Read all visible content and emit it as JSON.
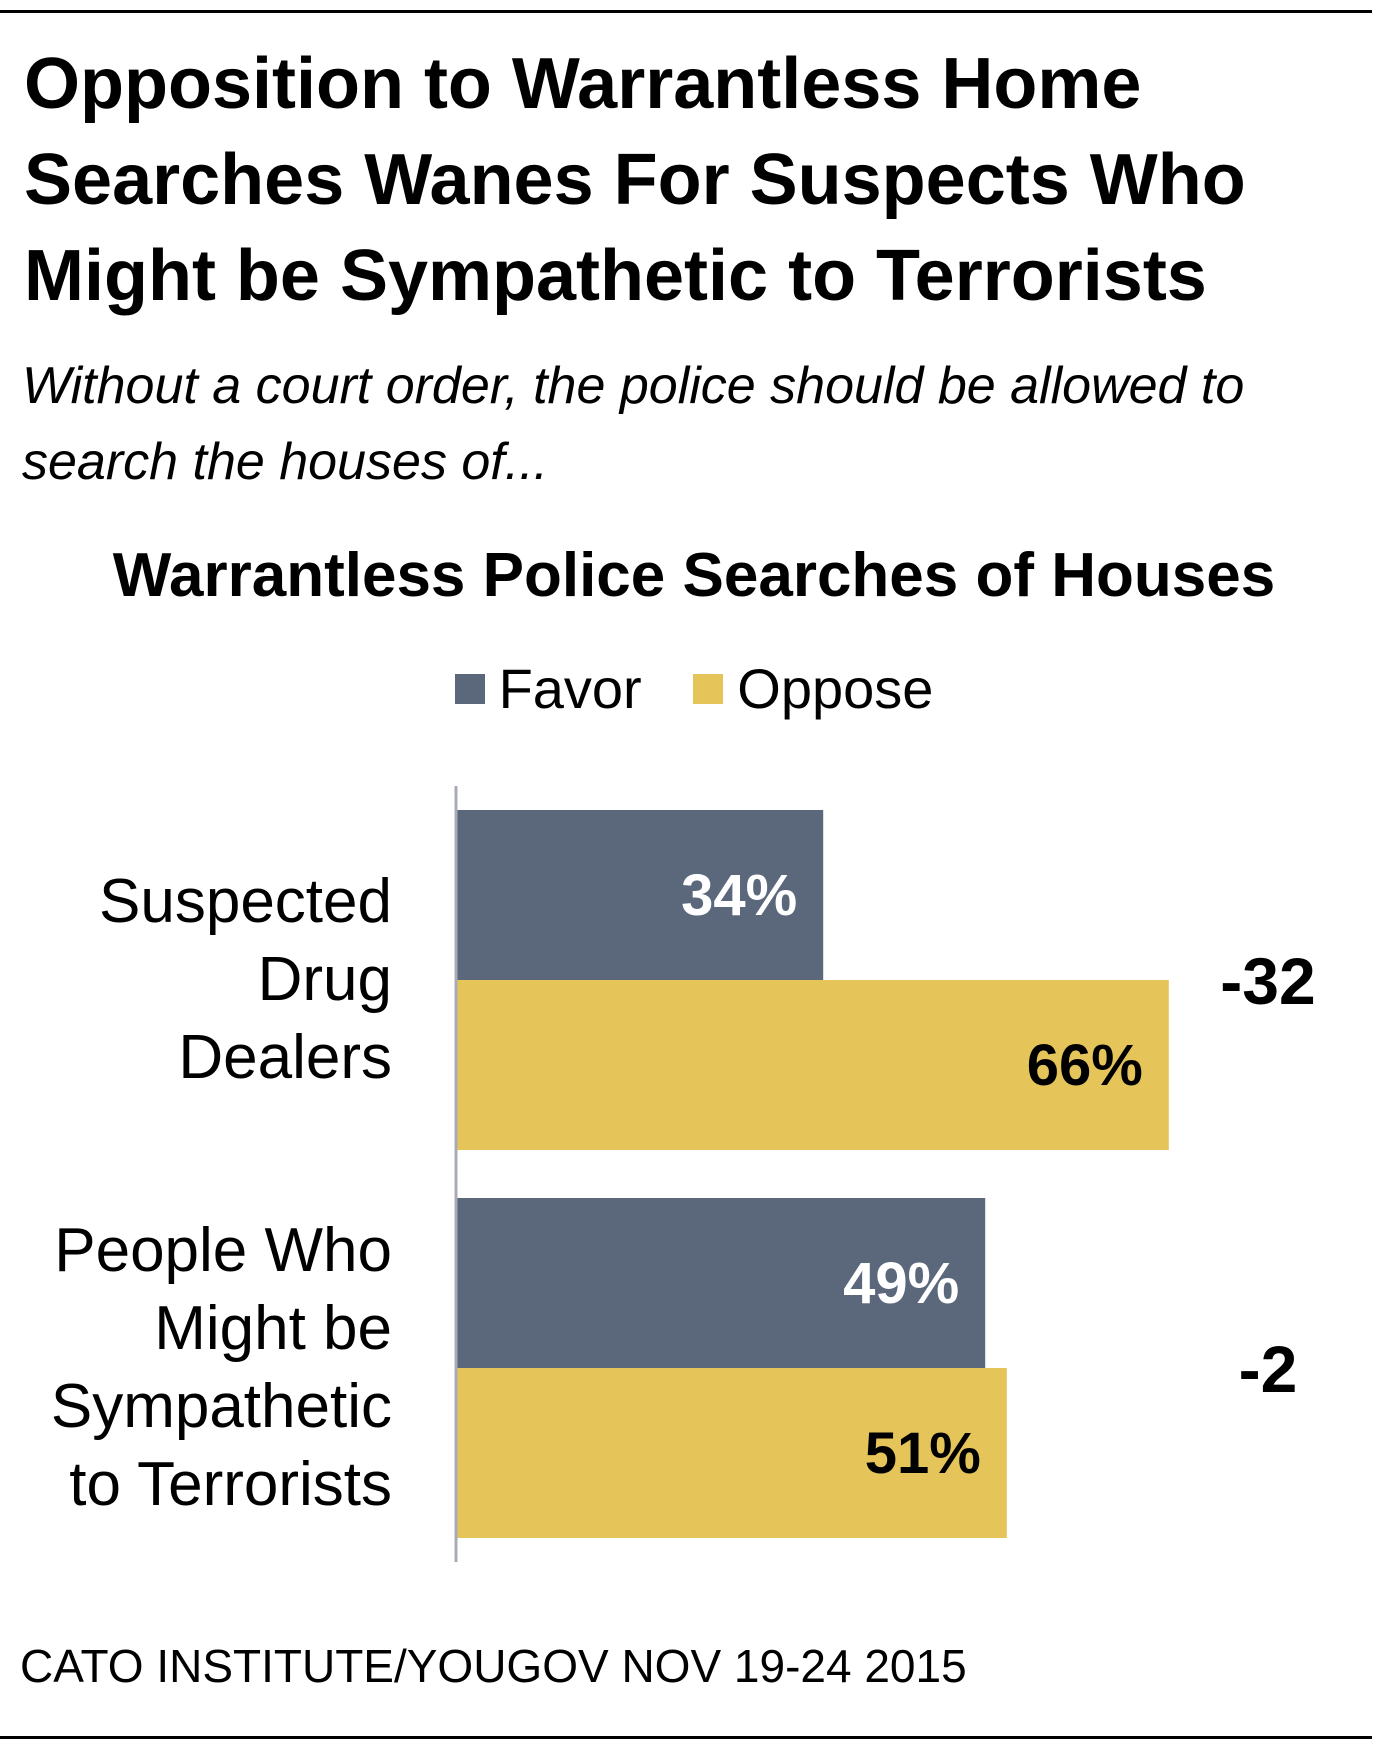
{
  "title": "Opposition to Warrantless Home Searches Wanes For Suspects Who Might be Sympathetic to Terrorists",
  "subtitle": "Without a court order, the police should be allowed to search the houses of...",
  "source": "CATO INSTITUTE/YOUGOV NOV 19-24 2015",
  "chart_data": {
    "type": "bar",
    "orientation": "horizontal",
    "title": "Warrantless Police Searches of Houses",
    "legend_position": "top-center",
    "grid": false,
    "xlim": [
      0,
      100
    ],
    "categories": [
      [
        "Suspected",
        "Drug",
        "Dealers"
      ],
      [
        "People Who",
        "Might be",
        "Sympathetic",
        "to Terrorists"
      ]
    ],
    "series": [
      {
        "name": "Favor",
        "color": "#5b687c",
        "values": [
          34,
          49
        ],
        "labels": [
          "34%",
          "49%"
        ],
        "label_color": "#ffffff"
      },
      {
        "name": "Oppose",
        "color": "#e5c55a",
        "values": [
          66,
          51
        ],
        "labels": [
          "66%",
          "51%"
        ],
        "label_color": "#000000"
      }
    ],
    "net_labels": [
      "-32",
      "-2"
    ]
  }
}
